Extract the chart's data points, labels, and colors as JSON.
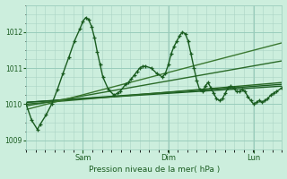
{
  "bg_color": "#cceedd",
  "grid_color_major": "#99ccbb",
  "grid_color_minor": "#aad4c4",
  "line_dark": "#1a5c20",
  "line_mid": "#2a7030",
  "line_light": "#3a8840",
  "title": "Pression niveau de la mer( hPa )",
  "ylim": [
    1008.75,
    1012.75
  ],
  "yticks": [
    1009,
    1010,
    1011,
    1012
  ],
  "xlim": [
    0.0,
    1.0
  ],
  "xtick_pos": [
    0.222,
    0.556,
    0.889
  ],
  "xtick_labels": [
    "Sam",
    "Dim",
    "Lun"
  ],
  "main_x": [
    0.0,
    0.022,
    0.044,
    0.056,
    0.078,
    0.1,
    0.122,
    0.144,
    0.167,
    0.189,
    0.211,
    0.222,
    0.233,
    0.244,
    0.256,
    0.267,
    0.278,
    0.289,
    0.3,
    0.322,
    0.344,
    0.356,
    0.367,
    0.389,
    0.4,
    0.411,
    0.422,
    0.433,
    0.444,
    0.456,
    0.467,
    0.489,
    0.511,
    0.533,
    0.544,
    0.556,
    0.567,
    0.578,
    0.589,
    0.6,
    0.611,
    0.622,
    0.633,
    0.644,
    0.656,
    0.667,
    0.678,
    0.689,
    0.7,
    0.711,
    0.722,
    0.733,
    0.744,
    0.756,
    0.767,
    0.778,
    0.789,
    0.8,
    0.811,
    0.822,
    0.833,
    0.844,
    0.856,
    0.867,
    0.878,
    0.889,
    0.9,
    0.911,
    0.922,
    0.933,
    0.944,
    0.956,
    0.967,
    0.978,
    1.0
  ],
  "main_y": [
    1010.0,
    1009.55,
    1009.3,
    1009.45,
    1009.7,
    1010.0,
    1010.4,
    1010.85,
    1011.3,
    1011.75,
    1012.1,
    1012.3,
    1012.4,
    1012.35,
    1012.15,
    1011.85,
    1011.45,
    1011.1,
    1010.75,
    1010.4,
    1010.25,
    1010.3,
    1010.35,
    1010.55,
    1010.6,
    1010.7,
    1010.8,
    1010.9,
    1011.0,
    1011.05,
    1011.05,
    1011.0,
    1010.85,
    1010.75,
    1010.85,
    1011.1,
    1011.4,
    1011.6,
    1011.75,
    1011.9,
    1012.0,
    1011.95,
    1011.75,
    1011.4,
    1011.0,
    1010.65,
    1010.4,
    1010.35,
    1010.5,
    1010.6,
    1010.45,
    1010.3,
    1010.15,
    1010.1,
    1010.15,
    1010.3,
    1010.45,
    1010.5,
    1010.45,
    1010.35,
    1010.35,
    1010.4,
    1010.35,
    1010.2,
    1010.1,
    1010.0,
    1010.05,
    1010.1,
    1010.05,
    1010.1,
    1010.15,
    1010.25,
    1010.3,
    1010.35,
    1010.45
  ],
  "straight_lines": [
    {
      "x0": 0.0,
      "y0": 1010.05,
      "x1": 1.0,
      "y1": 1010.5,
      "color": "#1a5c20",
      "lw": 1.0
    },
    {
      "x0": 0.0,
      "y0": 1010.05,
      "x1": 1.0,
      "y1": 1010.55,
      "color": "#1a5c20",
      "lw": 1.0
    },
    {
      "x0": 0.0,
      "y0": 1010.0,
      "x1": 1.0,
      "y1": 1010.6,
      "color": "#2a6a28",
      "lw": 1.0
    },
    {
      "x0": 0.0,
      "y0": 1009.95,
      "x1": 1.0,
      "y1": 1011.2,
      "color": "#2a6a28",
      "lw": 1.0
    },
    {
      "x0": 0.0,
      "y0": 1009.85,
      "x1": 1.0,
      "y1": 1011.7,
      "color": "#3a7830",
      "lw": 1.0
    }
  ]
}
